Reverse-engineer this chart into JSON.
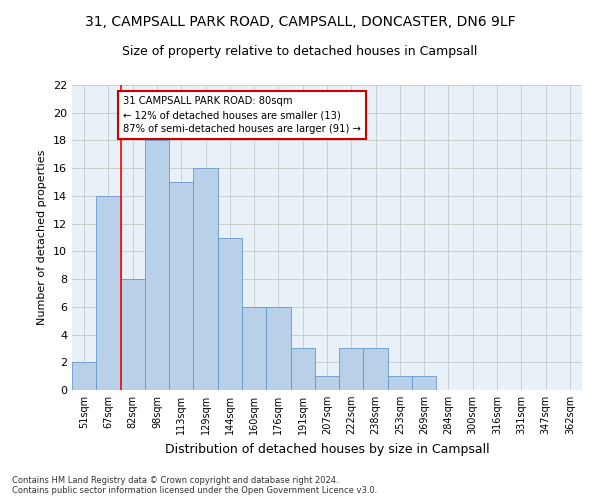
{
  "title1": "31, CAMPSALL PARK ROAD, CAMPSALL, DONCASTER, DN6 9LF",
  "title2": "Size of property relative to detached houses in Campsall",
  "xlabel": "Distribution of detached houses by size in Campsall",
  "ylabel": "Number of detached properties",
  "footer1": "Contains HM Land Registry data © Crown copyright and database right 2024.",
  "footer2": "Contains public sector information licensed under the Open Government Licence v3.0.",
  "bin_labels": [
    "51sqm",
    "67sqm",
    "82sqm",
    "98sqm",
    "113sqm",
    "129sqm",
    "144sqm",
    "160sqm",
    "176sqm",
    "191sqm",
    "207sqm",
    "222sqm",
    "238sqm",
    "253sqm",
    "269sqm",
    "284sqm",
    "300sqm",
    "316sqm",
    "331sqm",
    "347sqm",
    "362sqm"
  ],
  "bar_values": [
    2,
    14,
    8,
    18,
    15,
    16,
    11,
    6,
    6,
    3,
    1,
    3,
    3,
    1,
    1,
    0,
    0,
    0,
    0,
    0,
    0
  ],
  "bar_color": "#b8d0e8",
  "bar_edge_color": "#6699cc",
  "red_line_x": 1.5,
  "annotation_text": "31 CAMPSALL PARK ROAD: 80sqm\n← 12% of detached houses are smaller (13)\n87% of semi-detached houses are larger (91) →",
  "annotation_box_color": "#ffffff",
  "annotation_box_edge": "#cc0000",
  "ylim": [
    0,
    22
  ],
  "yticks": [
    0,
    2,
    4,
    6,
    8,
    10,
    12,
    14,
    16,
    18,
    20,
    22
  ],
  "grid_color": "#cccccc",
  "bg_color": "#e8f0f8",
  "title1_fontsize": 10,
  "title2_fontsize": 9,
  "ylabel_fontsize": 8,
  "xlabel_fontsize": 9
}
